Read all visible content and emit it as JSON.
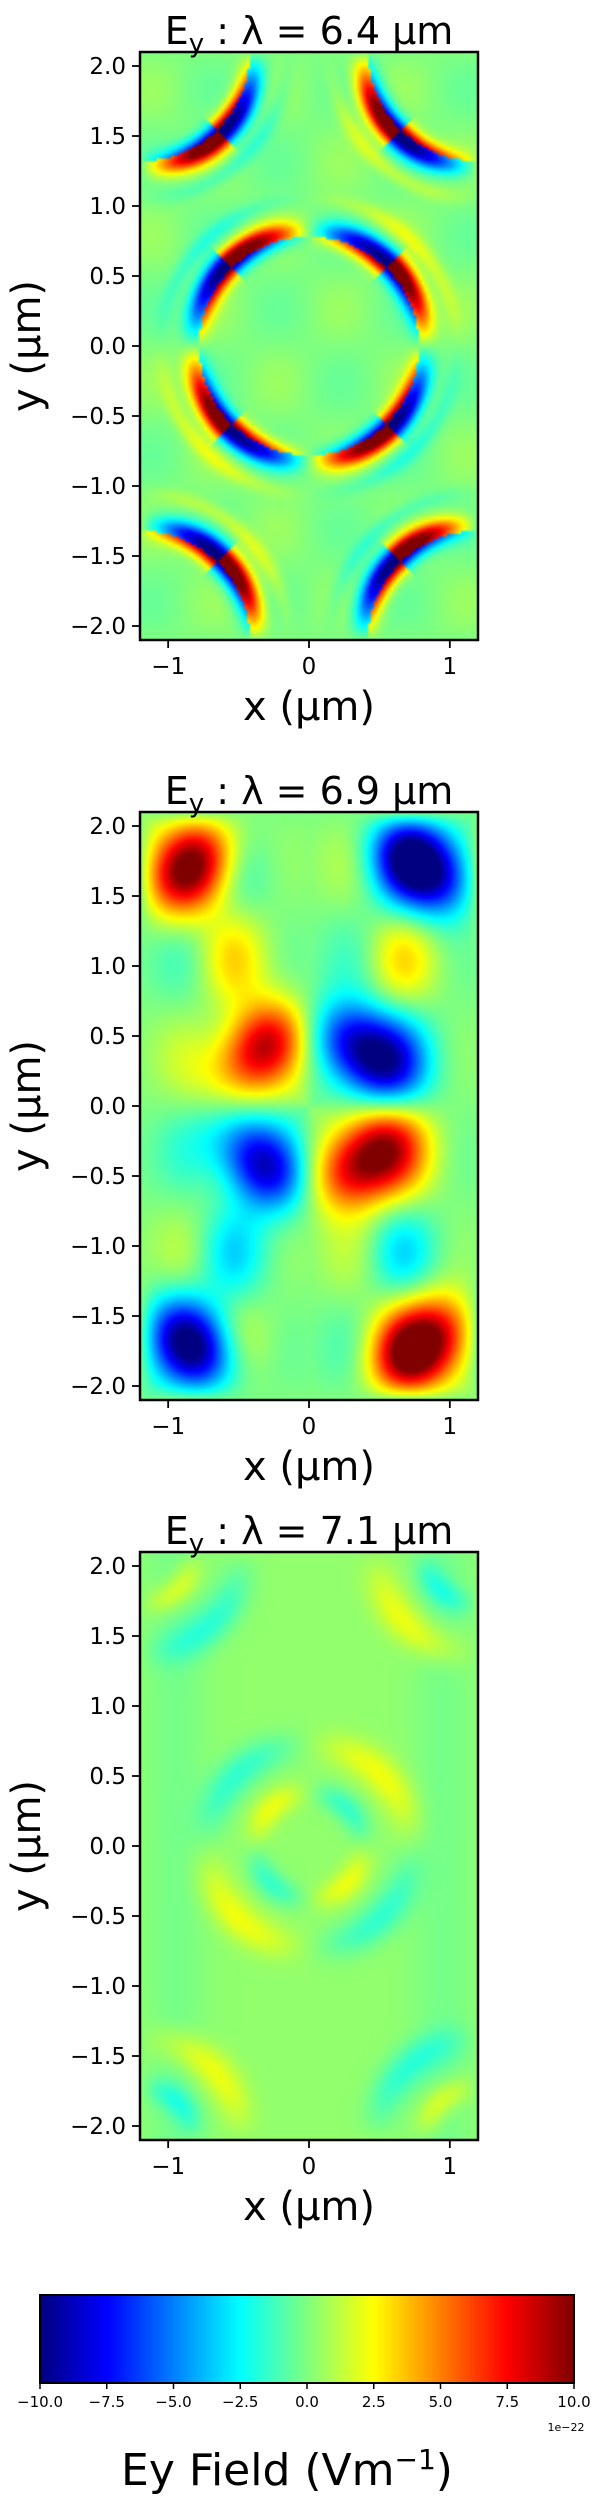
{
  "chart_data": [
    {
      "type": "heatmap",
      "title": "E",
      "title_sub": "y",
      "title_rest": " :  λ = 6.4 μm",
      "xlabel": "x (μm)",
      "ylabel": "y (μm)",
      "xlim": [
        -1.2,
        1.2
      ],
      "ylim": [
        -2.1,
        2.1
      ],
      "x_ticks": [
        "−1",
        "0",
        "1"
      ],
      "x_tick_values": [
        -1,
        0,
        1
      ],
      "y_ticks": [
        "2.0",
        "1.5",
        "1.0",
        "0.5",
        "0.0",
        "−0.5",
        "−1.0",
        "−1.5",
        "−2.0"
      ],
      "y_tick_values": [
        2.0,
        1.5,
        1.0,
        0.5,
        0.0,
        -0.5,
        -1.0,
        -1.5,
        -2.0
      ],
      "field_pattern": "thin high-contrast lobes on ring edges of radius ~0.9 μm centered at (0,0) and at the four corners (±1.2, ±2.1)",
      "amplitude_fraction": 0.95
    },
    {
      "type": "heatmap",
      "title": "E",
      "title_sub": "y",
      "title_rest": " :  λ = 6.9 μm",
      "xlabel": "x (μm)",
      "ylabel": "y (μm)",
      "xlim": [
        -1.2,
        1.2
      ],
      "ylim": [
        -2.1,
        2.1
      ],
      "x_ticks": [
        "−1",
        "0",
        "1"
      ],
      "x_tick_values": [
        -1,
        0,
        1
      ],
      "y_ticks": [
        "2.0",
        "1.5",
        "1.0",
        "0.5",
        "0.0",
        "−0.5",
        "−1.0",
        "−1.5",
        "−2.0"
      ],
      "y_tick_values": [
        2.0,
        1.5,
        1.0,
        0.5,
        0.0,
        -0.5,
        -1.0,
        -1.5,
        -2.0
      ],
      "field_pattern": "strong quadrupolar lobes filling the central and corner rings with weaker lobes between them",
      "amplitude_fraction": 1.0
    },
    {
      "type": "heatmap",
      "title": "E",
      "title_sub": "y",
      "title_rest": " :  λ = 7.1 μm",
      "xlabel": "x (μm)",
      "ylabel": "y (μm)",
      "xlim": [
        -1.2,
        1.2
      ],
      "ylim": [
        -2.1,
        2.1
      ],
      "x_ticks": [
        "−1",
        "0",
        "1"
      ],
      "x_tick_values": [
        -1,
        0,
        1
      ],
      "y_ticks": [
        "2.0",
        "1.5",
        "1.0",
        "0.5",
        "0.0",
        "−0.5",
        "−1.0",
        "−1.5",
        "−2.0"
      ],
      "y_tick_values": [
        2.0,
        1.5,
        1.0,
        0.5,
        0.0,
        -0.5,
        -1.0,
        -1.5,
        -2.0
      ],
      "field_pattern": "weak small elliptical lobes, background slightly positive (yellow-green)",
      "amplitude_fraction": 0.45
    }
  ],
  "colorbar": {
    "label": "Ey  Field (Vm",
    "label_sup": "−1",
    "label_close": ")",
    "range": [
      -10.0,
      10.0
    ],
    "ticks": [
      "−10.0",
      "−7.5",
      "−5.0",
      "−2.5",
      "0.0",
      "2.5",
      "5.0",
      "7.5",
      "10.0"
    ],
    "tick_values": [
      -10.0,
      -7.5,
      -5.0,
      -2.5,
      0.0,
      2.5,
      5.0,
      7.5,
      10.0
    ],
    "offset_text": "1e−22",
    "colormap": "jet",
    "colors": [
      "#00007f",
      "#0000ff",
      "#007fff",
      "#00ffff",
      "#7fff7f",
      "#ffff00",
      "#ff7f00",
      "#ff0000",
      "#7f0000"
    ]
  }
}
